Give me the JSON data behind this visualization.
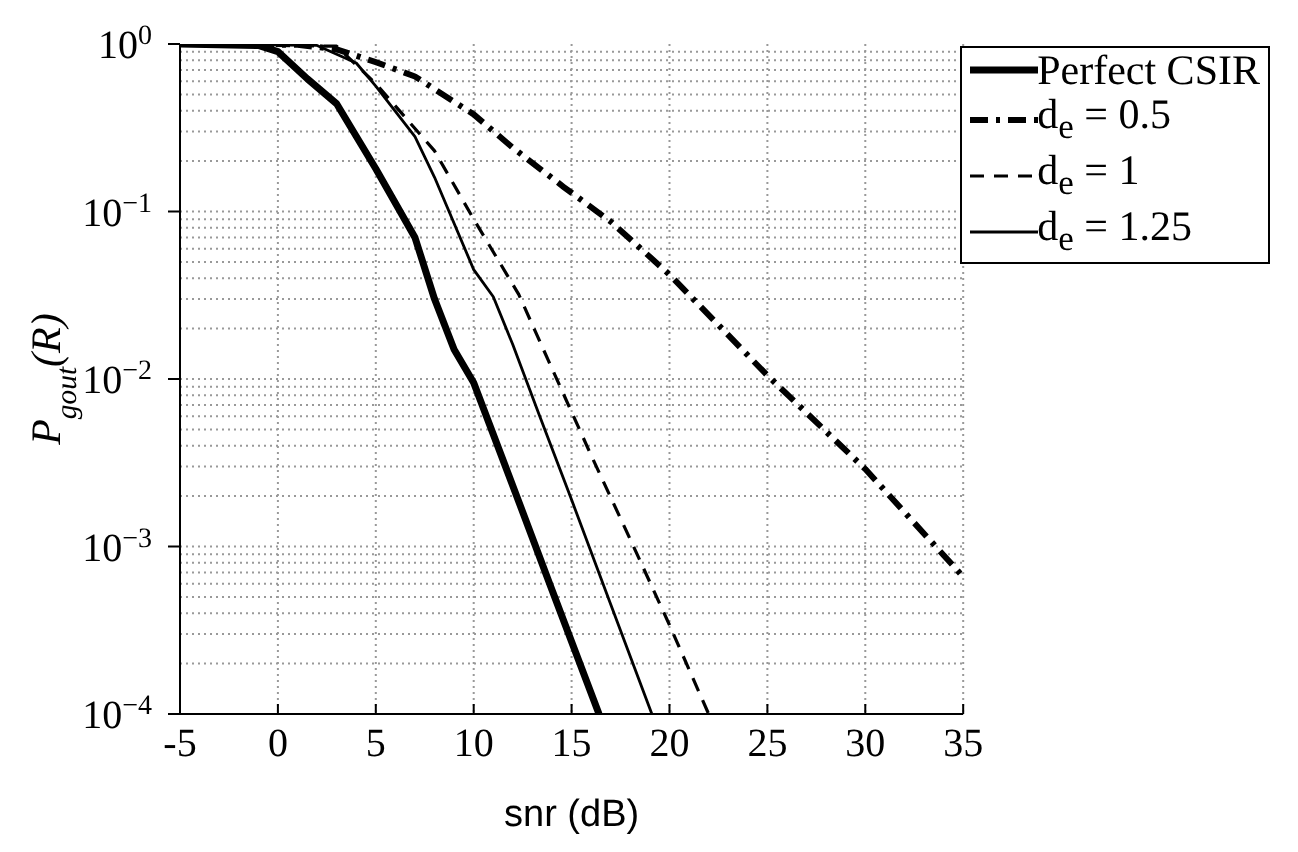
{
  "chart_data": {
    "type": "line",
    "xlabel": "snr (dB)",
    "ylabel": "P$_{gout}$(R)",
    "xlim": [
      -5,
      35
    ],
    "xticks": [
      -5,
      0,
      5,
      10,
      15,
      20,
      25,
      30,
      35
    ],
    "ylim": [
      0.0001,
      1
    ],
    "yticks": [
      {
        "value": 0.0001,
        "label": "10$^{−4}$"
      },
      {
        "value": 0.001,
        "label": "10$^{−3}$"
      },
      {
        "value": 0.01,
        "label": "10$^{−2}$"
      },
      {
        "value": 0.1,
        "label": "10$^{−1}$"
      },
      {
        "value": 1,
        "label": "10$^{0}$"
      }
    ],
    "log": "y",
    "grid": true,
    "legend": "top right",
    "marker": "none",
    "series": [
      {
        "name": "Perfect CSIR",
        "color": "#000000",
        "line_style": "solid",
        "x": [
          -5,
          -1,
          0,
          1.5,
          3,
          5,
          7,
          8,
          9,
          10,
          12,
          14,
          16.4
        ],
        "values": [
          1,
          0.98,
          0.9,
          0.62,
          0.44,
          0.18,
          0.07,
          0.03,
          0.015,
          0.0095,
          0.0023,
          0.00055,
          0.0001
        ]
      },
      {
        "name": "d$_{e}$ = 0.5",
        "color": "#000000",
        "line_style": "dashdot",
        "x": [
          -5,
          1,
          3,
          5,
          7,
          10,
          12,
          14.6,
          17,
          20,
          25,
          30,
          35
        ],
        "values": [
          1,
          0.99,
          0.93,
          0.78,
          0.64,
          0.38,
          0.24,
          0.14,
          0.087,
          0.042,
          0.0105,
          0.0029,
          0.00066
        ]
      },
      {
        "name": "d$_{e}$ = 1",
        "color": "#000000",
        "line_style": "dashed",
        "x": [
          -5,
          3,
          5,
          8,
          10,
          12.3,
          13.8,
          16,
          18,
          20,
          22
        ],
        "values": [
          1,
          0.97,
          0.58,
          0.23,
          0.09,
          0.032,
          0.013,
          0.0035,
          0.0011,
          0.00034,
          0.0001
        ]
      },
      {
        "name": "d$_{e}$ = 1.25",
        "color": "#000000",
        "line_style": "solid",
        "x": [
          -5,
          2,
          4,
          5,
          7,
          8,
          10,
          11,
          12,
          13.3,
          15,
          17,
          19.1
        ],
        "values": [
          1,
          0.98,
          0.77,
          0.56,
          0.28,
          0.16,
          0.045,
          0.031,
          0.016,
          0.0063,
          0.0019,
          0.00045,
          0.0001
        ]
      }
    ]
  }
}
